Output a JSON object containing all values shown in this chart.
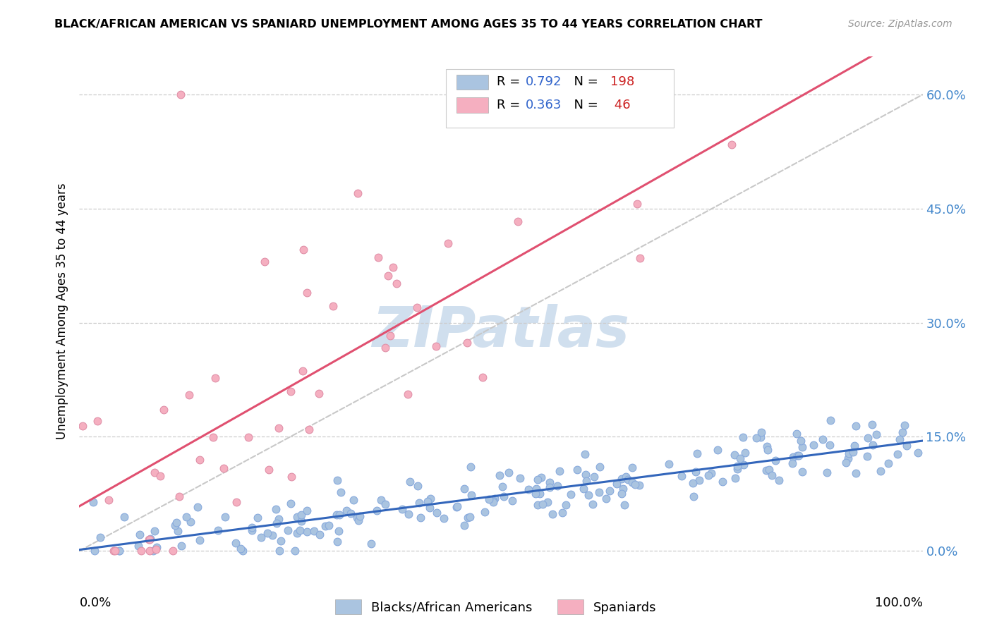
{
  "title": "BLACK/AFRICAN AMERICAN VS SPANIARD UNEMPLOYMENT AMONG AGES 35 TO 44 YEARS CORRELATION CHART",
  "source": "Source: ZipAtlas.com",
  "ylabel": "Unemployment Among Ages 35 to 44 years",
  "blue_R": 0.792,
  "blue_N": 198,
  "pink_R": 0.363,
  "pink_N": 46,
  "blue_color": "#aac4e0",
  "pink_color": "#f5afc0",
  "blue_line_color": "#3366bb",
  "pink_line_color": "#e05070",
  "dashed_line_color": "#c8c8c8",
  "watermark_color": "#d0dfee",
  "legend_R_color": "#3366cc",
  "legend_N_color": "#cc2222",
  "ytick_labels": [
    "0.0%",
    "15.0%",
    "30.0%",
    "45.0%",
    "60.0%"
  ],
  "ytick_values": [
    0.0,
    0.15,
    0.3,
    0.45,
    0.6
  ],
  "xlim": [
    0.0,
    1.0
  ],
  "ylim": [
    -0.02,
    0.65
  ],
  "blue_scatter_edgecolor": "#88aadd",
  "pink_scatter_edgecolor": "#e090a8"
}
